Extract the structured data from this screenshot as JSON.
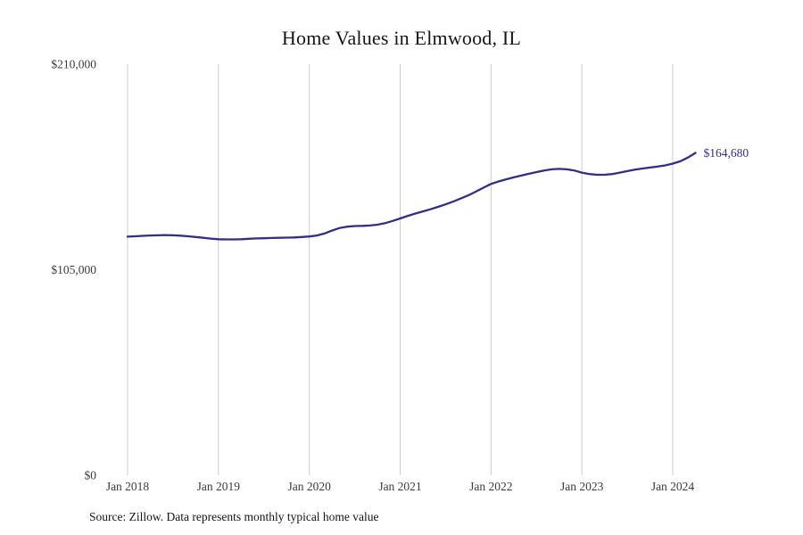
{
  "page": {
    "title": "Home Values in Elmwood, IL",
    "source_note": "Source: Zillow. Data represents monthly typical home value"
  },
  "chart_data": {
    "type": "line",
    "title": "Home Values in Elmwood, IL",
    "x_start": "Jan 2018",
    "x_end": "Apr 2024",
    "frequency": "monthly",
    "xticks": [
      "Jan 2018",
      "Jan 2019",
      "Jan 2020",
      "Jan 2021",
      "Jan 2022",
      "Jan 2023",
      "Jan 2024"
    ],
    "yticks": [
      {
        "label": "$0",
        "value": 0
      },
      {
        "label": "$105,000",
        "value": 105000
      },
      {
        "label": "$210,000",
        "value": 210000
      }
    ],
    "ylim": [
      0,
      210000
    ],
    "series_name": "Typical home value",
    "values": [
      121900,
      122100,
      122300,
      122500,
      122600,
      122700,
      122600,
      122400,
      122100,
      121700,
      121300,
      120900,
      120600,
      120500,
      120500,
      120600,
      120800,
      121000,
      121100,
      121200,
      121300,
      121400,
      121500,
      121700,
      122000,
      122500,
      123500,
      125000,
      126300,
      127000,
      127300,
      127400,
      127600,
      128000,
      128800,
      129900,
      131200,
      132500,
      133700,
      134800,
      135900,
      137100,
      138400,
      139800,
      141400,
      143000,
      144900,
      146900,
      148800,
      150100,
      151200,
      152200,
      153100,
      154000,
      154900,
      155700,
      156300,
      156500,
      156300,
      155700,
      154600,
      153900,
      153500,
      153500,
      153900,
      154600,
      155400,
      156100,
      156700,
      157200,
      157700,
      158300,
      159200,
      160400,
      162300,
      164680
    ],
    "end_label": "$164,680",
    "line_color": "#312f85",
    "grid_color": "#cccccc",
    "grid": "vertical-only",
    "legend": "none"
  }
}
